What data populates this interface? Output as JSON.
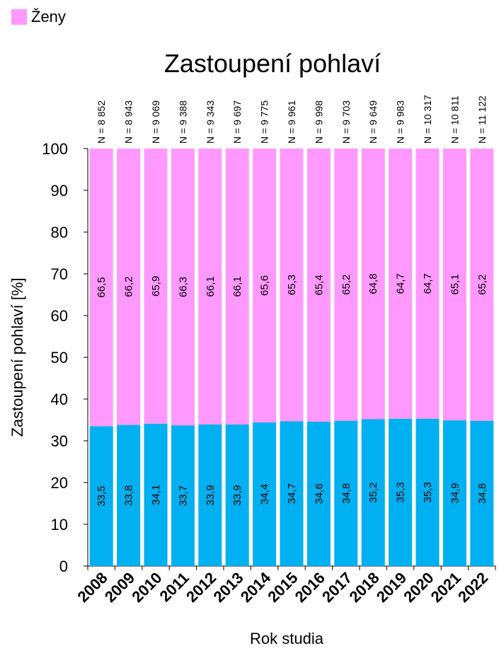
{
  "legend": {
    "label": "Ženy",
    "color": "#ff99ff"
  },
  "colors": {
    "women": "#ff99ff",
    "men": "#00b0f0"
  },
  "chart_data": {
    "type": "bar",
    "stacked": true,
    "title": "Zastoupení pohlaví",
    "xlabel": "Rok studia",
    "ylabel": "Zastoupení pohlaví [%]",
    "ylim": [
      0,
      100
    ],
    "yticks": [
      0,
      10,
      20,
      30,
      40,
      50,
      60,
      70,
      80,
      90,
      100
    ],
    "grid": false,
    "legend_position": "top-left",
    "categories": [
      "2008",
      "2009",
      "2010",
      "2011",
      "2012",
      "2013",
      "2014",
      "2015",
      "2016",
      "2017",
      "2018",
      "2019",
      "2020",
      "2021",
      "2022"
    ],
    "n_labels": [
      "N = 8 852",
      "N = 8 943",
      "N = 9 069",
      "N = 9 388",
      "N = 9 343",
      "N = 9 697",
      "N = 9 775",
      "N = 9 961",
      "N = 9 998",
      "N = 9 703",
      "N = 9 649",
      "N = 9 983",
      "N = 10 317",
      "N = 10 811",
      "N = 11 122"
    ],
    "series": [
      {
        "values": [
          33.5,
          33.8,
          34.1,
          33.7,
          33.9,
          33.9,
          34.4,
          34.7,
          34.6,
          34.8,
          35.2,
          35.3,
          35.3,
          34.9,
          34.8
        ],
        "labels": [
          "33,5",
          "33,8",
          "34,1",
          "33,7",
          "33,9",
          "33,9",
          "34,4",
          "34,7",
          "34,6",
          "34,8",
          "35,2",
          "35,3",
          "35,3",
          "34,9",
          "34,8"
        ],
        "color": "#00b0f0"
      },
      {
        "name": "Ženy",
        "values": [
          66.5,
          66.2,
          65.9,
          66.3,
          66.1,
          66.1,
          65.6,
          65.3,
          65.4,
          65.2,
          64.8,
          64.7,
          64.7,
          65.1,
          65.2
        ],
        "labels": [
          "66,5",
          "66,2",
          "65,9",
          "66,3",
          "66,1",
          "66,1",
          "65,6",
          "65,3",
          "65,4",
          "65,2",
          "64,8",
          "64,7",
          "64,7",
          "65,1",
          "65,2"
        ],
        "color": "#ff99ff"
      }
    ]
  }
}
